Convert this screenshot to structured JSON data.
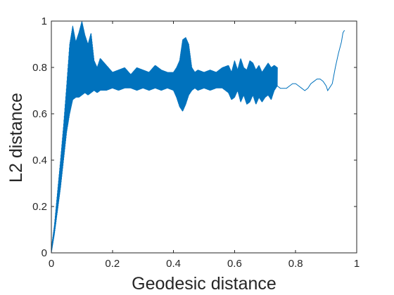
{
  "chart_data": {
    "type": "line",
    "title": "",
    "xlabel": "Geodesic distance",
    "ylabel": "L2 distance",
    "xlim": [
      0,
      1
    ],
    "ylim": [
      0,
      1
    ],
    "xticks": [
      "0",
      "0.2",
      "0.4",
      "0.6",
      "0.8",
      "1"
    ],
    "yticks": [
      "0",
      "0.2",
      "0.4",
      "0.6",
      "0.8",
      "1"
    ],
    "grid": false,
    "box": true,
    "line_color": "#0072BD",
    "series": [
      {
        "description_style": "envelope of rapidly oscillating signal",
        "x": [
          0.0,
          0.01,
          0.02,
          0.03,
          0.04,
          0.05,
          0.06,
          0.07,
          0.08,
          0.09,
          0.1,
          0.11,
          0.12,
          0.13,
          0.14,
          0.15,
          0.16,
          0.18,
          0.2,
          0.22,
          0.24,
          0.26,
          0.28,
          0.3,
          0.32,
          0.34,
          0.36,
          0.38,
          0.4,
          0.41,
          0.42,
          0.43,
          0.44,
          0.45,
          0.46,
          0.47,
          0.48,
          0.5,
          0.52,
          0.54,
          0.56,
          0.58,
          0.59,
          0.6,
          0.61,
          0.62,
          0.63,
          0.64,
          0.65,
          0.66,
          0.67,
          0.68,
          0.69,
          0.7,
          0.71,
          0.72,
          0.73,
          0.74
        ],
        "upper": [
          0.02,
          0.12,
          0.26,
          0.4,
          0.55,
          0.72,
          0.9,
          0.98,
          0.91,
          0.95,
          1.0,
          0.94,
          0.9,
          0.95,
          0.83,
          0.8,
          0.84,
          0.81,
          0.78,
          0.79,
          0.8,
          0.77,
          0.8,
          0.79,
          0.78,
          0.81,
          0.79,
          0.78,
          0.78,
          0.8,
          0.83,
          0.92,
          0.93,
          0.9,
          0.8,
          0.78,
          0.79,
          0.78,
          0.79,
          0.78,
          0.8,
          0.81,
          0.78,
          0.83,
          0.79,
          0.84,
          0.8,
          0.79,
          0.83,
          0.82,
          0.79,
          0.81,
          0.78,
          0.8,
          0.82,
          0.8,
          0.81,
          0.8
        ],
        "lower": [
          0.0,
          0.08,
          0.18,
          0.28,
          0.4,
          0.52,
          0.6,
          0.66,
          0.67,
          0.67,
          0.68,
          0.69,
          0.68,
          0.69,
          0.7,
          0.69,
          0.7,
          0.7,
          0.71,
          0.7,
          0.71,
          0.71,
          0.7,
          0.71,
          0.7,
          0.71,
          0.7,
          0.71,
          0.7,
          0.67,
          0.63,
          0.61,
          0.64,
          0.68,
          0.7,
          0.71,
          0.7,
          0.71,
          0.7,
          0.71,
          0.71,
          0.69,
          0.66,
          0.67,
          0.7,
          0.65,
          0.68,
          0.64,
          0.65,
          0.68,
          0.64,
          0.67,
          0.65,
          0.67,
          0.68,
          0.66,
          0.7,
          0.72
        ]
      },
      {
        "description_style": "thin trailing line",
        "x": [
          0.74,
          0.75,
          0.76,
          0.77,
          0.78,
          0.79,
          0.8,
          0.81,
          0.82,
          0.83,
          0.84,
          0.85,
          0.86,
          0.87,
          0.88,
          0.89,
          0.9,
          0.905,
          0.91,
          0.92,
          0.93,
          0.94,
          0.95,
          0.955,
          0.96
        ],
        "y": [
          0.72,
          0.71,
          0.71,
          0.71,
          0.72,
          0.73,
          0.73,
          0.72,
          0.71,
          0.7,
          0.71,
          0.73,
          0.74,
          0.75,
          0.75,
          0.74,
          0.72,
          0.7,
          0.71,
          0.73,
          0.8,
          0.86,
          0.91,
          0.95,
          0.96
        ]
      }
    ]
  }
}
